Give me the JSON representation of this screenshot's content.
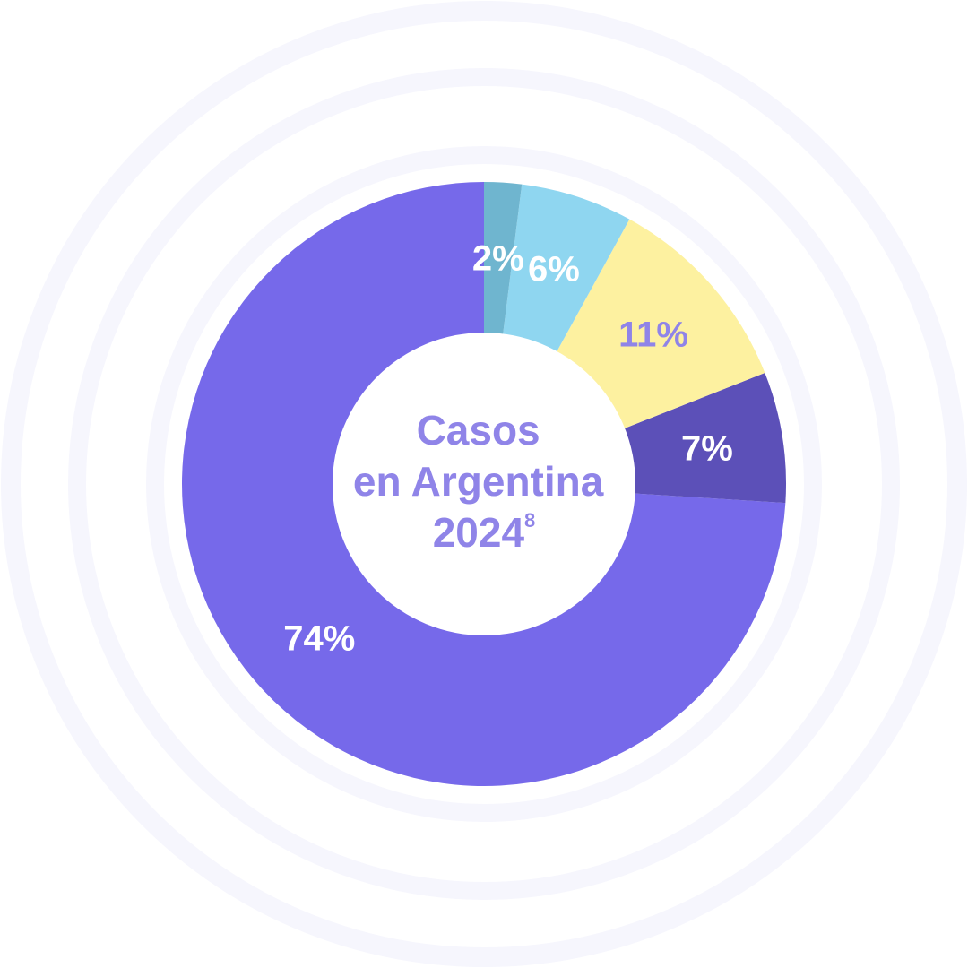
{
  "chart_data": {
    "type": "pie",
    "title_lines": [
      "Casos",
      "en Argentina",
      "2024"
    ],
    "title_footnote": "8",
    "slices": [
      {
        "label": "74%",
        "value": 74,
        "color": "#7669ea",
        "label_color": "#ffffff"
      },
      {
        "label": "7%",
        "value": 7,
        "color": "#5c50b8",
        "label_color": "#ffffff"
      },
      {
        "label": "11%",
        "value": 11,
        "color": "#fdf1a0",
        "label_color": "#8f84e8"
      },
      {
        "label": "6%",
        "value": 6,
        "color": "#8fd6f0",
        "label_color": "#ffffff"
      },
      {
        "label": "2%",
        "value": 2,
        "color": "#6fb5cf",
        "label_color": "#ffffff"
      }
    ],
    "ring_color": "#f6f6fd"
  }
}
